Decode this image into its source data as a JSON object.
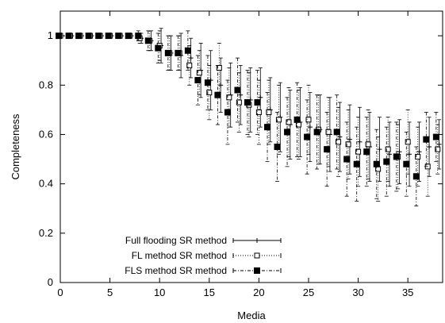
{
  "chart_data": {
    "type": "scatter",
    "title": "",
    "xlabel": "Media",
    "ylabel": "Completeness",
    "xlim": [
      0,
      38.5
    ],
    "ylim": [
      0,
      1.1
    ],
    "xticks": [
      "0",
      "5",
      "10",
      "15",
      "20",
      "25",
      "30",
      "35"
    ],
    "yticks": [
      "0",
      "0.2",
      "0.4",
      "0.6",
      "0.8",
      "1"
    ],
    "grid": false,
    "legend_position": "bottom-left",
    "series": [
      {
        "name": "Full flooding SR method",
        "marker": "plus",
        "line": "solid",
        "points": [
          [
            0,
            1,
            0
          ],
          [
            1,
            1,
            0
          ],
          [
            2,
            1,
            0
          ],
          [
            3,
            1,
            0
          ],
          [
            4,
            1,
            0
          ],
          [
            5,
            1,
            0
          ],
          [
            6,
            1,
            0
          ],
          [
            7,
            1,
            0
          ],
          [
            8,
            0.99,
            0.02
          ],
          [
            9,
            0.98,
            0.04
          ],
          [
            10,
            0.96,
            0.07
          ],
          [
            11,
            0.93,
            0.07
          ],
          [
            12,
            0.92,
            0.09
          ],
          [
            13,
            0.91,
            0.08
          ],
          [
            14,
            0.86,
            0.11
          ],
          [
            15,
            0.82,
            0.12
          ],
          [
            16,
            0.8,
            0.11
          ],
          [
            17,
            0.76,
            0.13
          ],
          [
            18,
            0.76,
            0.12
          ],
          [
            19,
            0.74,
            0.13
          ],
          [
            20,
            0.75,
            0.12
          ],
          [
            21,
            0.7,
            0.13
          ],
          [
            22,
            0.67,
            0.14
          ],
          [
            23,
            0.64,
            0.14
          ],
          [
            24,
            0.65,
            0.14
          ],
          [
            25,
            0.63,
            0.14
          ],
          [
            26,
            0.62,
            0.14
          ],
          [
            27,
            0.6,
            0.15
          ],
          [
            28,
            0.59,
            0.14
          ],
          [
            29,
            0.58,
            0.14
          ],
          [
            30,
            0.57,
            0.14
          ],
          [
            31,
            0.55,
            0.14
          ],
          [
            32,
            0.54,
            0.13
          ],
          [
            33,
            0.52,
            0.13
          ],
          [
            34,
            0.53,
            0.13
          ],
          [
            35,
            0.52,
            0.13
          ],
          [
            36,
            0.53,
            0.12
          ],
          [
            37,
            0.55,
            0.12
          ],
          [
            38,
            0.56,
            0.1
          ]
        ]
      },
      {
        "name": "FL method SR method",
        "marker": "open-square",
        "line": "dotted",
        "points": [
          [
            0,
            1,
            0
          ],
          [
            1,
            1,
            0
          ],
          [
            2,
            1,
            0
          ],
          [
            3,
            1,
            0
          ],
          [
            4,
            1,
            0
          ],
          [
            5,
            1,
            0
          ],
          [
            6,
            1,
            0
          ],
          [
            7,
            1,
            0
          ],
          [
            8,
            0.99,
            0.02
          ],
          [
            9,
            0.98,
            0.04
          ],
          [
            10,
            0.96,
            0.06
          ],
          [
            11,
            0.93,
            0.07
          ],
          [
            12,
            0.93,
            0.07
          ],
          [
            13,
            0.88,
            0.08
          ],
          [
            14,
            0.85,
            0.09
          ],
          [
            15,
            0.77,
            0.11
          ],
          [
            16,
            0.87,
            0.1
          ],
          [
            17,
            0.75,
            0.12
          ],
          [
            18,
            0.73,
            0.12
          ],
          [
            19,
            0.72,
            0.13
          ],
          [
            20,
            0.69,
            0.13
          ],
          [
            21,
            0.69,
            0.13
          ],
          [
            22,
            0.66,
            0.14
          ],
          [
            23,
            0.65,
            0.14
          ],
          [
            24,
            0.64,
            0.14
          ],
          [
            25,
            0.66,
            0.14
          ],
          [
            26,
            0.62,
            0.14
          ],
          [
            27,
            0.61,
            0.14
          ],
          [
            28,
            0.57,
            0.14
          ],
          [
            29,
            0.56,
            0.14
          ],
          [
            30,
            0.53,
            0.14
          ],
          [
            31,
            0.56,
            0.14
          ],
          [
            32,
            0.46,
            0.13
          ],
          [
            33,
            0.54,
            0.13
          ],
          [
            34,
            0.51,
            0.13
          ],
          [
            35,
            0.57,
            0.13
          ],
          [
            36,
            0.51,
            0.12
          ],
          [
            37,
            0.47,
            0.12
          ],
          [
            38,
            0.54,
            0.1
          ]
        ]
      },
      {
        "name": "FLS method SR method",
        "marker": "filled-square",
        "line": "dashdot",
        "points": [
          [
            0,
            1,
            0
          ],
          [
            1,
            1,
            0
          ],
          [
            2,
            1,
            0
          ],
          [
            3,
            1,
            0
          ],
          [
            4,
            1,
            0
          ],
          [
            5,
            1,
            0
          ],
          [
            6,
            1,
            0
          ],
          [
            7,
            1,
            0
          ],
          [
            8,
            1.0,
            0.02
          ],
          [
            9,
            0.98,
            0.04
          ],
          [
            10,
            0.95,
            0.06
          ],
          [
            11,
            0.93,
            0.07
          ],
          [
            12,
            0.93,
            0.07
          ],
          [
            13,
            0.94,
            0.08
          ],
          [
            14,
            0.82,
            0.1
          ],
          [
            15,
            0.81,
            0.11
          ],
          [
            16,
            0.76,
            0.12
          ],
          [
            17,
            0.69,
            0.13
          ],
          [
            18,
            0.78,
            0.13
          ],
          [
            19,
            0.73,
            0.13
          ],
          [
            20,
            0.73,
            0.13
          ],
          [
            21,
            0.63,
            0.14
          ],
          [
            22,
            0.55,
            0.14
          ],
          [
            23,
            0.61,
            0.14
          ],
          [
            24,
            0.66,
            0.15
          ],
          [
            25,
            0.59,
            0.15
          ],
          [
            26,
            0.61,
            0.15
          ],
          [
            27,
            0.54,
            0.15
          ],
          [
            28,
            0.61,
            0.15
          ],
          [
            29,
            0.5,
            0.15
          ],
          [
            30,
            0.48,
            0.15
          ],
          [
            31,
            0.53,
            0.14
          ],
          [
            32,
            0.48,
            0.14
          ],
          [
            33,
            0.49,
            0.14
          ],
          [
            34,
            0.51,
            0.14
          ],
          [
            35,
            0.48,
            0.13
          ],
          [
            36,
            0.43,
            0.12
          ],
          [
            37,
            0.58,
            0.11
          ],
          [
            38,
            0.59,
            0.1
          ]
        ]
      }
    ]
  }
}
